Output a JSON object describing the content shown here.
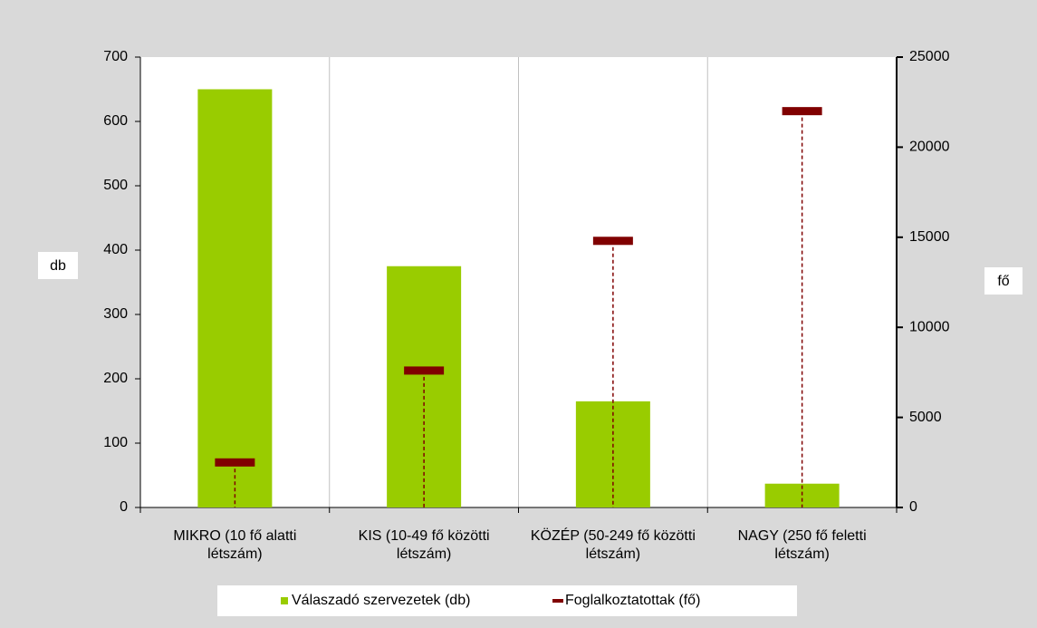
{
  "chart_data": {
    "type": "bar",
    "categories": [
      "MIKRO (10 fő alatti létszám)",
      "KIS (10-49 fő közötti létszám)",
      "KÖZÉP (50-249 fő közötti létszám)",
      "NAGY (250 fő feletti létszám)"
    ],
    "series": [
      {
        "name": "Válaszadó szervezetek (db)",
        "color": "#99cc00",
        "values": [
          650,
          375,
          165,
          37
        ]
      },
      {
        "name": "Foglalkoztatottak (fő)",
        "color": "#800000",
        "values": [
          2500,
          7600,
          14800,
          22000
        ],
        "axis": "y2"
      }
    ],
    "y_label": "db",
    "y2_label": "fő",
    "ylim": [
      0,
      700
    ],
    "yticks": [
      0,
      100,
      200,
      300,
      400,
      500,
      600,
      700
    ],
    "y2lim": [
      0,
      25000
    ],
    "y2ticks": [
      0,
      5000,
      10000,
      15000,
      20000,
      25000
    ],
    "grid": "x",
    "drop_lines": true,
    "legend": "bottom"
  }
}
